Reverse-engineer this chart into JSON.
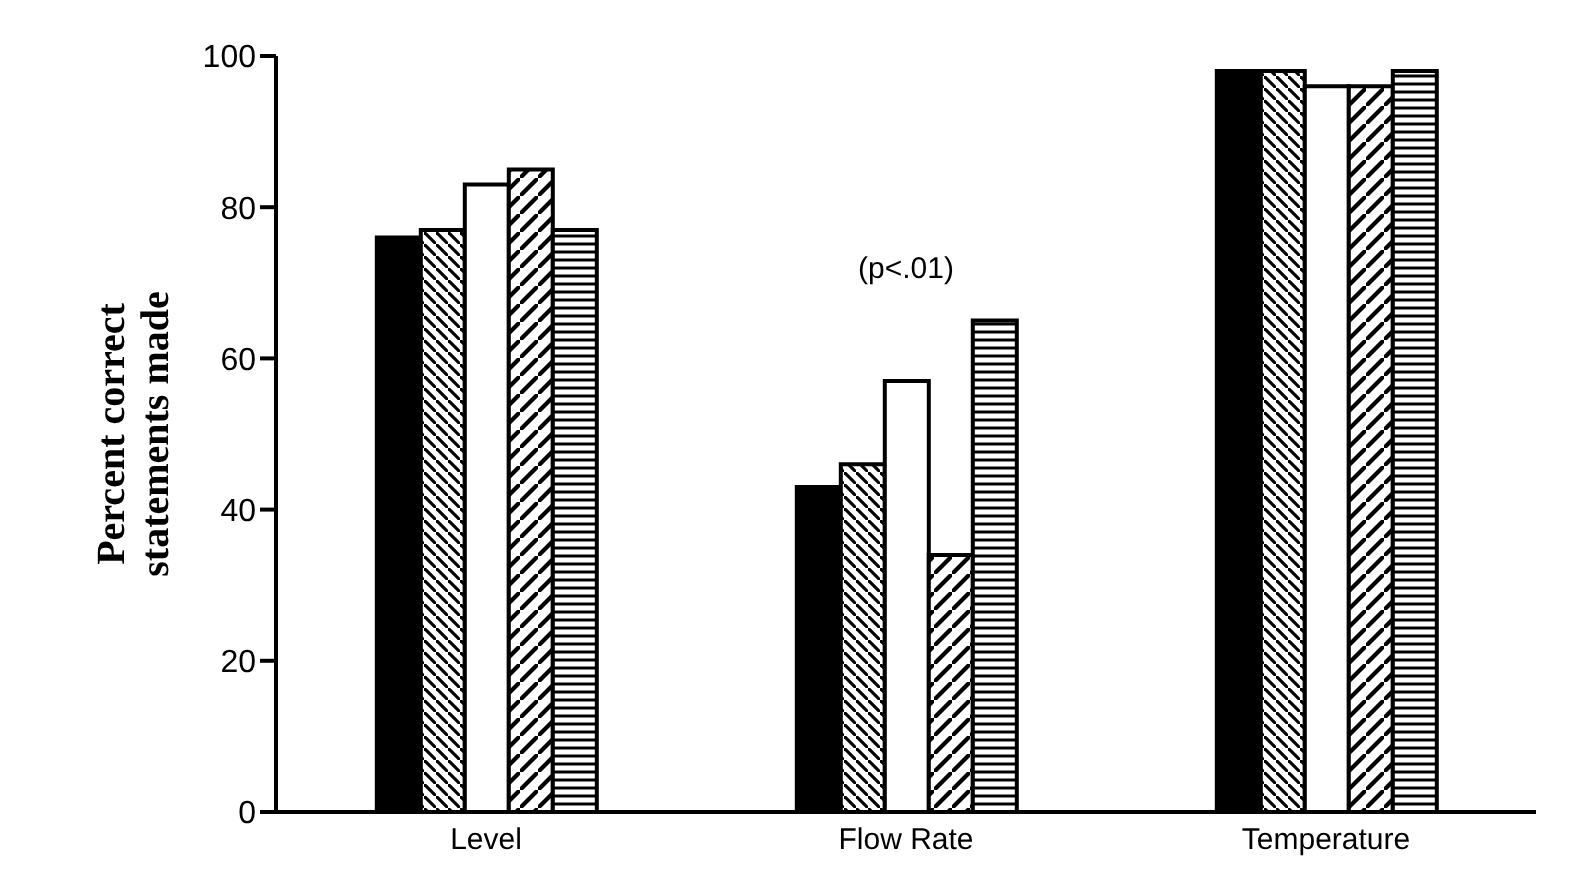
{
  "chart_data": {
    "type": "bar",
    "ylabel": "Percent correct\nstatements made",
    "categories": [
      "Level",
      "Flow Rate",
      "Temperature"
    ],
    "series": [
      {
        "color": "#000000",
        "values": [
          76,
          43,
          98
        ]
      },
      {
        "color": "#000000",
        "values": [
          77,
          46,
          98
        ]
      },
      {
        "color": "#ffffff",
        "values": [
          83,
          57,
          96
        ]
      },
      {
        "color": "#000000",
        "values": [
          85,
          34,
          96
        ]
      },
      {
        "color": "#000000",
        "values": [
          77,
          65,
          98
        ]
      }
    ],
    "ylim": [
      0,
      100
    ],
    "yticks": [
      0,
      20,
      40,
      60,
      80,
      100
    ],
    "grid": false,
    "legend": false,
    "annotations": [
      "(p<.01)"
    ]
  }
}
